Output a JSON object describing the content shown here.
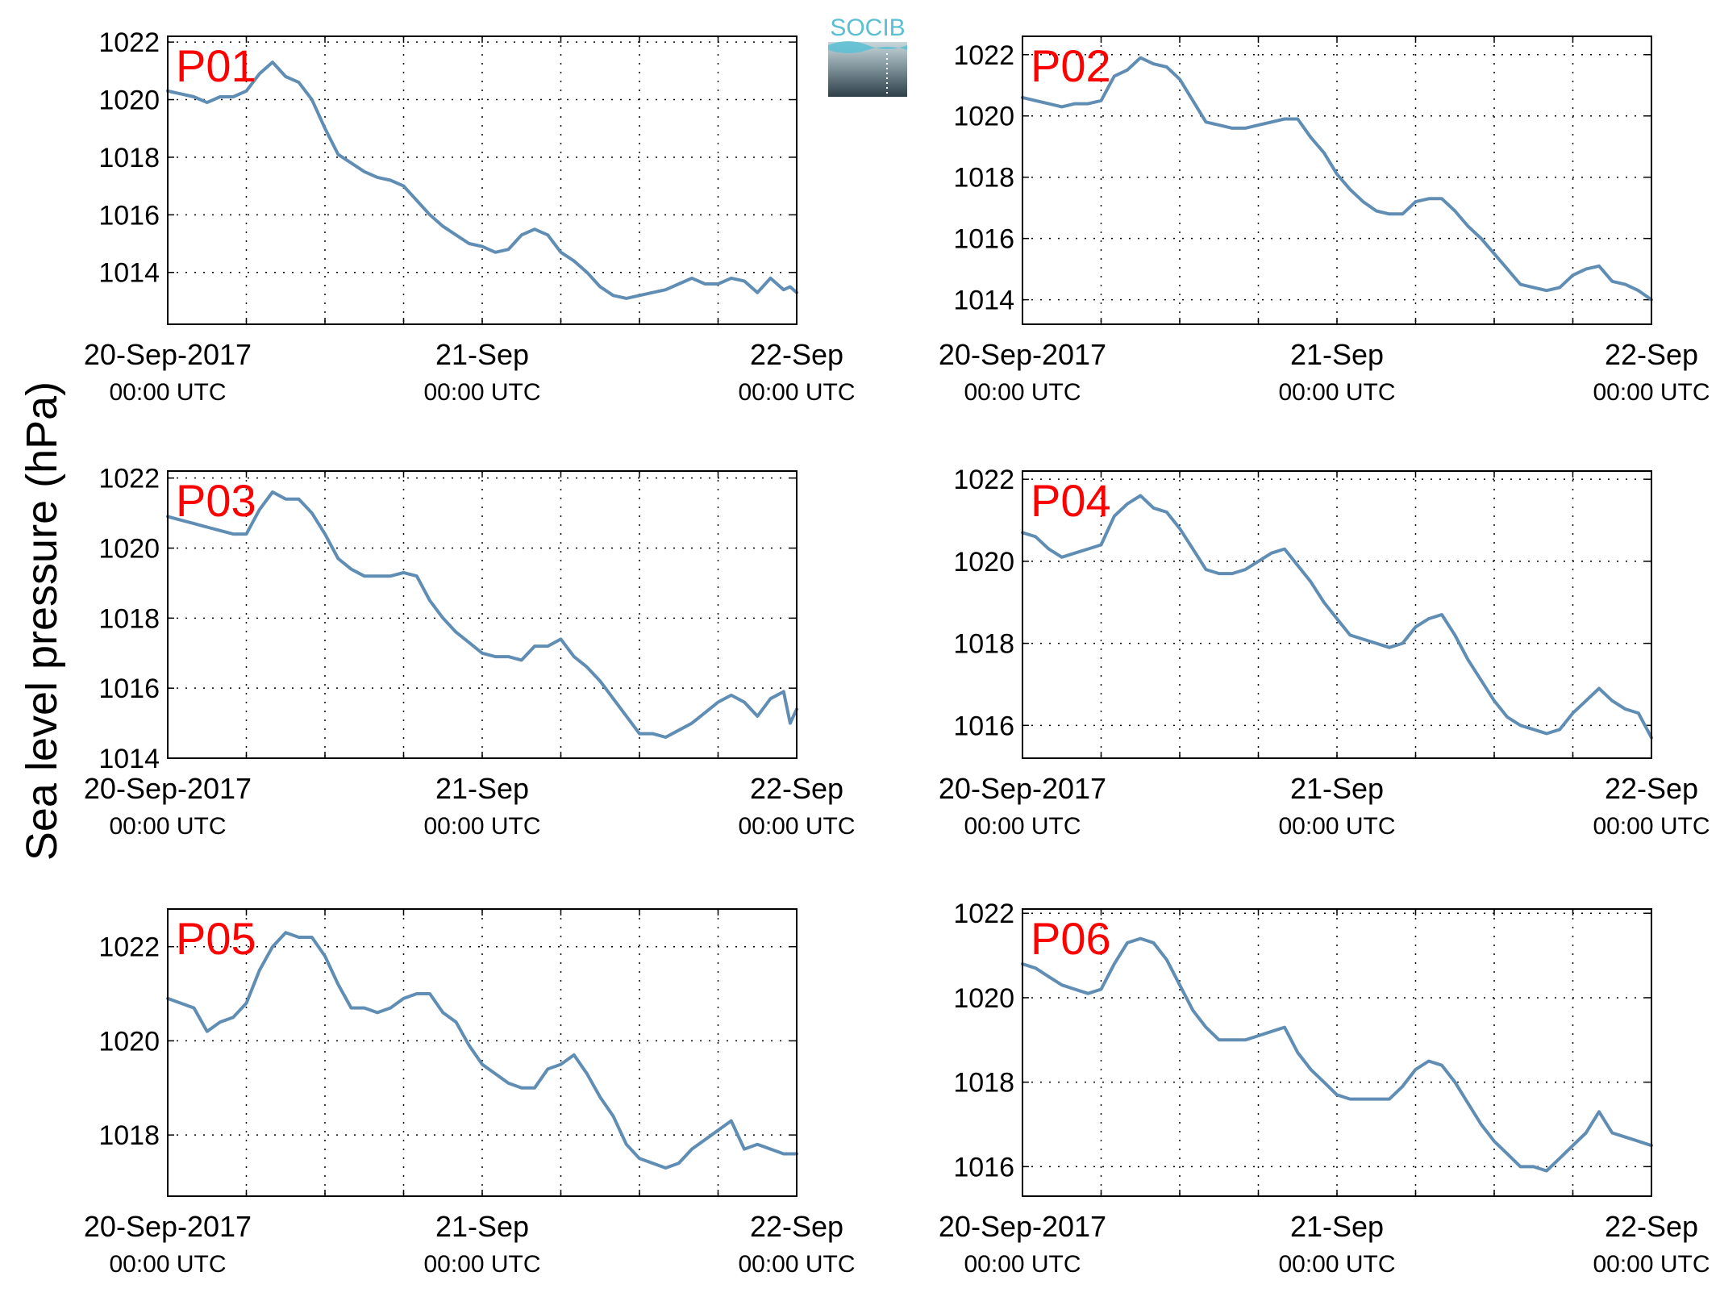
{
  "figure": {
    "ylabel": "Sea level pressure (hPa)",
    "logo_text": "SOCIB",
    "line_color": "#5f8db4",
    "label_color": "#ff0000",
    "logo_color": "#5bbfd3"
  },
  "chart_data": [
    {
      "type": "line",
      "title": "P01",
      "x_unit": "hours since 20-Sep-2017 00:00 UTC",
      "xlim": [
        0,
        48
      ],
      "ylim": [
        1012.2,
        1022.2
      ],
      "yticks": [
        1014,
        1016,
        1018,
        1020,
        1022
      ],
      "xticks": [
        {
          "label": "20-Sep-2017",
          "sub": "00:00 UTC"
        },
        {
          "label": "21-Sep",
          "sub": "00:00 UTC"
        },
        {
          "label": "22-Sep",
          "sub": "00:00 UTC"
        }
      ],
      "grid": true,
      "series": [
        {
          "x": [
            0,
            1,
            2,
            3,
            4,
            5,
            6,
            7,
            8,
            9,
            10,
            11,
            12,
            13,
            14,
            15,
            16,
            17,
            18,
            19,
            20,
            21,
            22,
            23,
            24,
            25,
            26,
            27,
            28,
            29,
            30,
            31,
            32,
            33,
            34,
            35,
            36,
            37,
            38,
            39,
            40,
            41,
            42,
            43,
            44,
            45,
            46,
            47,
            47.5,
            48
          ],
          "y": [
            1020.3,
            1020.2,
            1020.1,
            1019.9,
            1020.1,
            1020.1,
            1020.3,
            1020.9,
            1021.3,
            1020.8,
            1020.6,
            1020.0,
            1019.0,
            1018.1,
            1017.8,
            1017.5,
            1017.3,
            1017.2,
            1017.0,
            1016.5,
            1016.0,
            1015.6,
            1015.3,
            1015.0,
            1014.9,
            1014.7,
            1014.8,
            1015.3,
            1015.5,
            1015.3,
            1014.7,
            1014.4,
            1014.0,
            1013.5,
            1013.2,
            1013.1,
            1013.2,
            1013.3,
            1013.4,
            1013.6,
            1013.8,
            1013.6,
            1013.6,
            1013.8,
            1013.7,
            1013.3,
            1013.8,
            1013.4,
            1013.5,
            1013.3
          ]
        }
      ]
    },
    {
      "type": "line",
      "title": "P02",
      "x_unit": "hours since 20-Sep-2017 00:00 UTC",
      "xlim": [
        0,
        48
      ],
      "ylim": [
        1013.2,
        1022.6
      ],
      "yticks": [
        1014,
        1016,
        1018,
        1020,
        1022
      ],
      "xticks": [
        {
          "label": "20-Sep-2017",
          "sub": "00:00 UTC"
        },
        {
          "label": "21-Sep",
          "sub": "00:00 UTC"
        },
        {
          "label": "22-Sep",
          "sub": "00:00 UTC"
        }
      ],
      "grid": true,
      "series": [
        {
          "x": [
            0,
            1,
            2,
            3,
            4,
            5,
            6,
            7,
            8,
            9,
            10,
            11,
            12,
            13,
            14,
            15,
            16,
            17,
            18,
            19,
            20,
            21,
            22,
            23,
            24,
            25,
            26,
            27,
            28,
            29,
            30,
            31,
            32,
            33,
            34,
            35,
            36,
            37,
            38,
            39,
            40,
            41,
            42,
            43,
            44,
            45,
            46,
            47,
            48
          ],
          "y": [
            1020.6,
            1020.5,
            1020.4,
            1020.3,
            1020.4,
            1020.4,
            1020.5,
            1021.3,
            1021.5,
            1021.9,
            1021.7,
            1021.6,
            1021.2,
            1020.5,
            1019.8,
            1019.7,
            1019.6,
            1019.6,
            1019.7,
            1019.8,
            1019.9,
            1019.9,
            1019.3,
            1018.8,
            1018.1,
            1017.6,
            1017.2,
            1016.9,
            1016.8,
            1016.8,
            1017.2,
            1017.3,
            1017.3,
            1016.9,
            1016.4,
            1016.0,
            1015.5,
            1015.0,
            1014.5,
            1014.4,
            1014.3,
            1014.4,
            1014.8,
            1015.0,
            1015.1,
            1014.6,
            1014.5,
            1014.3,
            1014.0
          ]
        }
      ]
    },
    {
      "type": "line",
      "title": "P03",
      "x_unit": "hours since 20-Sep-2017 00:00 UTC",
      "xlim": [
        0,
        48
      ],
      "ylim": [
        1014,
        1022.2
      ],
      "yticks": [
        1014,
        1016,
        1018,
        1020,
        1022
      ],
      "xticks": [
        {
          "label": "20-Sep-2017",
          "sub": "00:00 UTC"
        },
        {
          "label": "21-Sep",
          "sub": "00:00 UTC"
        },
        {
          "label": "22-Sep",
          "sub": "00:00 UTC"
        }
      ],
      "grid": true,
      "series": [
        {
          "x": [
            0,
            1,
            2,
            3,
            4,
            5,
            6,
            7,
            8,
            9,
            10,
            11,
            12,
            13,
            14,
            15,
            16,
            17,
            18,
            19,
            20,
            21,
            22,
            23,
            24,
            25,
            26,
            27,
            28,
            29,
            30,
            31,
            32,
            33,
            34,
            35,
            36,
            37,
            38,
            39,
            40,
            41,
            42,
            43,
            44,
            45,
            46,
            47,
            47.5,
            48
          ],
          "y": [
            1020.9,
            1020.8,
            1020.7,
            1020.6,
            1020.5,
            1020.4,
            1020.4,
            1021.1,
            1021.6,
            1021.4,
            1021.4,
            1021.0,
            1020.4,
            1019.7,
            1019.4,
            1019.2,
            1019.2,
            1019.2,
            1019.3,
            1019.2,
            1018.5,
            1018.0,
            1017.6,
            1017.3,
            1017.0,
            1016.9,
            1016.9,
            1016.8,
            1017.2,
            1017.2,
            1017.4,
            1016.9,
            1016.6,
            1016.2,
            1015.7,
            1015.2,
            1014.7,
            1014.7,
            1014.6,
            1014.8,
            1015.0,
            1015.3,
            1015.6,
            1015.8,
            1015.6,
            1015.2,
            1015.7,
            1015.9,
            1015.0,
            1015.4
          ]
        }
      ]
    },
    {
      "type": "line",
      "title": "P04",
      "x_unit": "hours since 20-Sep-2017 00:00 UTC",
      "xlim": [
        0,
        48
      ],
      "ylim": [
        1015.2,
        1022.2
      ],
      "yticks": [
        1016,
        1018,
        1020,
        1022
      ],
      "xticks": [
        {
          "label": "20-Sep-2017",
          "sub": "00:00 UTC"
        },
        {
          "label": "21-Sep",
          "sub": "00:00 UTC"
        },
        {
          "label": "22-Sep",
          "sub": "00:00 UTC"
        }
      ],
      "grid": true,
      "series": [
        {
          "x": [
            0,
            1,
            2,
            3,
            4,
            5,
            6,
            7,
            8,
            9,
            10,
            11,
            12,
            13,
            14,
            15,
            16,
            17,
            18,
            19,
            20,
            21,
            22,
            23,
            24,
            25,
            26,
            27,
            28,
            29,
            30,
            31,
            32,
            33,
            34,
            35,
            36,
            37,
            38,
            39,
            40,
            41,
            42,
            43,
            44,
            45,
            46,
            47,
            48
          ],
          "y": [
            1020.7,
            1020.6,
            1020.3,
            1020.1,
            1020.2,
            1020.3,
            1020.4,
            1021.1,
            1021.4,
            1021.6,
            1021.3,
            1021.2,
            1020.8,
            1020.3,
            1019.8,
            1019.7,
            1019.7,
            1019.8,
            1020.0,
            1020.2,
            1020.3,
            1019.9,
            1019.5,
            1019.0,
            1018.6,
            1018.2,
            1018.1,
            1018.0,
            1017.9,
            1018.0,
            1018.4,
            1018.6,
            1018.7,
            1018.2,
            1017.6,
            1017.1,
            1016.6,
            1016.2,
            1016.0,
            1015.9,
            1015.8,
            1015.9,
            1016.3,
            1016.6,
            1016.9,
            1016.6,
            1016.4,
            1016.3,
            1015.7
          ]
        }
      ]
    },
    {
      "type": "line",
      "title": "P05",
      "x_unit": "hours since 20-Sep-2017 00:00 UTC",
      "xlim": [
        0,
        48
      ],
      "ylim": [
        1016.7,
        1022.8
      ],
      "yticks": [
        1018,
        1020,
        1022
      ],
      "xticks": [
        {
          "label": "20-Sep-2017",
          "sub": "00:00 UTC"
        },
        {
          "label": "21-Sep",
          "sub": "00:00 UTC"
        },
        {
          "label": "22-Sep",
          "sub": "00:00 UTC"
        }
      ],
      "grid": true,
      "series": [
        {
          "x": [
            0,
            1,
            2,
            3,
            4,
            5,
            6,
            7,
            8,
            9,
            10,
            11,
            12,
            13,
            14,
            15,
            16,
            17,
            18,
            19,
            20,
            21,
            22,
            23,
            24,
            25,
            26,
            27,
            28,
            29,
            30,
            31,
            32,
            33,
            34,
            35,
            36,
            37,
            38,
            39,
            40,
            41,
            42,
            43,
            44,
            45,
            46,
            47,
            48
          ],
          "y": [
            1020.9,
            1020.8,
            1020.7,
            1020.2,
            1020.4,
            1020.5,
            1020.8,
            1021.5,
            1022.0,
            1022.3,
            1022.2,
            1022.2,
            1021.8,
            1021.2,
            1020.7,
            1020.7,
            1020.6,
            1020.7,
            1020.9,
            1021.0,
            1021.0,
            1020.6,
            1020.4,
            1019.9,
            1019.5,
            1019.3,
            1019.1,
            1019.0,
            1019.0,
            1019.4,
            1019.5,
            1019.7,
            1019.3,
            1018.8,
            1018.4,
            1017.8,
            1017.5,
            1017.4,
            1017.3,
            1017.4,
            1017.7,
            1017.9,
            1018.1,
            1018.3,
            1017.7,
            1017.8,
            1017.7,
            1017.6,
            1017.6
          ]
        }
      ]
    },
    {
      "type": "line",
      "title": "P06",
      "x_unit": "hours since 20-Sep-2017 00:00 UTC",
      "xlim": [
        0,
        48
      ],
      "ylim": [
        1015.3,
        1022.1
      ],
      "yticks": [
        1016,
        1018,
        1020,
        1022
      ],
      "xticks": [
        {
          "label": "20-Sep-2017",
          "sub": "00:00 UTC"
        },
        {
          "label": "21-Sep",
          "sub": "00:00 UTC"
        },
        {
          "label": "22-Sep",
          "sub": "00:00 UTC"
        }
      ],
      "grid": true,
      "series": [
        {
          "x": [
            0,
            1,
            2,
            3,
            4,
            5,
            6,
            7,
            8,
            9,
            10,
            11,
            12,
            13,
            14,
            15,
            16,
            17,
            18,
            19,
            20,
            21,
            22,
            23,
            24,
            25,
            26,
            27,
            28,
            29,
            30,
            31,
            32,
            33,
            34,
            35,
            36,
            37,
            38,
            39,
            40,
            41,
            42,
            43,
            44,
            45,
            46,
            47,
            48
          ],
          "y": [
            1020.8,
            1020.7,
            1020.5,
            1020.3,
            1020.2,
            1020.1,
            1020.2,
            1020.8,
            1021.3,
            1021.4,
            1021.3,
            1020.9,
            1020.3,
            1019.7,
            1019.3,
            1019.0,
            1019.0,
            1019.0,
            1019.1,
            1019.2,
            1019.3,
            1018.7,
            1018.3,
            1018.0,
            1017.7,
            1017.6,
            1017.6,
            1017.6,
            1017.6,
            1017.9,
            1018.3,
            1018.5,
            1018.4,
            1018.0,
            1017.5,
            1017.0,
            1016.6,
            1016.3,
            1016.0,
            1016.0,
            1015.9,
            1016.2,
            1016.5,
            1016.8,
            1017.3,
            1016.8,
            1016.7,
            1016.6,
            1016.5
          ]
        }
      ]
    }
  ]
}
